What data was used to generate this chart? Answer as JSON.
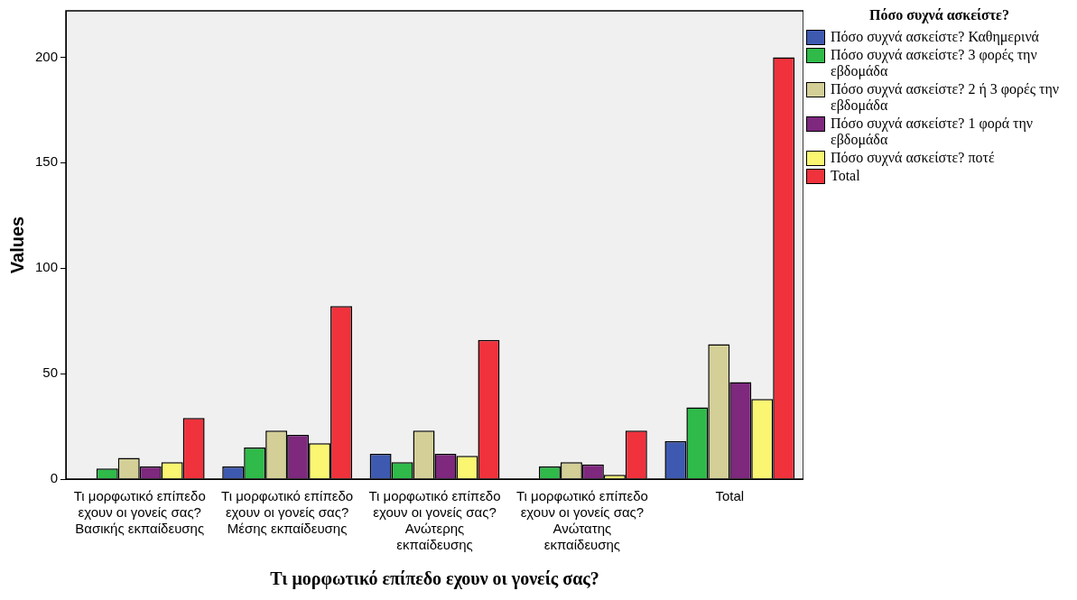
{
  "chart_data": {
    "type": "bar",
    "xlabel": "Τι μορφωτικό επίπεδο εχουν οι γονείς σας?",
    "ylabel": "Values",
    "legend_title": "Πόσο συχνά ασκείστε?",
    "categories": [
      "Τι μορφωτικό επίπεδο εχουν οι γονείς σας? Βασικής εκπαίδευσης",
      "Τι μορφωτικό επίπεδο εχουν οι γονείς σας? Μέσης εκπαίδευσης",
      "Τι μορφωτικό επίπεδο εχουν οι γονείς σας? Ανώτερης εκπαίδευσης",
      "Τι μορφωτικό επίπεδο εχουν οι γονείς σας? Ανώτατης εκπαίδευσης",
      "Total"
    ],
    "series": [
      {
        "name": "Πόσο συχνά ασκείστε? Καθημερινά",
        "color": "#3e5ab0",
        "values": [
          0,
          6,
          12,
          0,
          18
        ]
      },
      {
        "name": "Πόσο συχνά ασκείστε? 3 φορές την εβδομάδα",
        "color": "#2fba4a",
        "values": [
          5,
          15,
          8,
          6,
          34
        ]
      },
      {
        "name": "Πόσο συχνά ασκείστε? 2 ή 3 φορές την εβδομάδα",
        "color": "#d3cf97",
        "values": [
          10,
          23,
          23,
          8,
          64
        ]
      },
      {
        "name": "Πόσο συχνά ασκείστε? 1 φορά την εβδομάδα",
        "color": "#7e287e",
        "values": [
          6,
          21,
          12,
          7,
          46
        ]
      },
      {
        "name": "Πόσο συχνά ασκείστε? ποτέ",
        "color": "#faf672",
        "values": [
          8,
          17,
          11,
          2,
          38
        ]
      },
      {
        "name": "Total",
        "color": "#f0323c",
        "values": [
          29,
          82,
          66,
          23,
          200
        ]
      }
    ],
    "ylim": [
      0,
      222
    ],
    "yticks": [
      0,
      50,
      100,
      150,
      200
    ],
    "grid": false,
    "legend": "right"
  }
}
